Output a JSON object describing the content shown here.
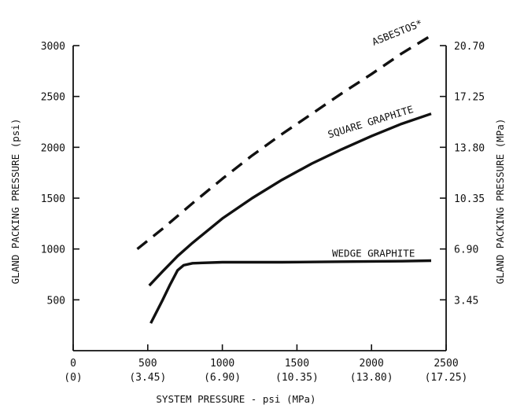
{
  "chart_data": {
    "type": "line",
    "xlabel": "SYSTEM PRESSURE - psi (MPa)",
    "ylabel_left": "GLAND PACKING PRESSURE (psi)",
    "ylabel_right": "GLAND PACKING PRESSURE (MPa)",
    "xlim": [
      0,
      2500
    ],
    "ylim": [
      0,
      3000
    ],
    "grid": false,
    "x_ticks": [
      {
        "value": 0,
        "label": "0",
        "sublabel": "(0)"
      },
      {
        "value": 500,
        "label": "500",
        "sublabel": "(3.45)"
      },
      {
        "value": 1000,
        "label": "1000",
        "sublabel": "(6.90)"
      },
      {
        "value": 1500,
        "label": "1500",
        "sublabel": "(10.35)"
      },
      {
        "value": 2000,
        "label": "2000",
        "sublabel": "(13.80)"
      },
      {
        "value": 2500,
        "label": "2500",
        "sublabel": "(17.25)"
      }
    ],
    "y_ticks_left": [
      {
        "value": 500,
        "label": "500"
      },
      {
        "value": 1000,
        "label": "1000"
      },
      {
        "value": 1500,
        "label": "1500"
      },
      {
        "value": 2000,
        "label": "2000"
      },
      {
        "value": 2500,
        "label": "2500"
      },
      {
        "value": 3000,
        "label": "3000"
      }
    ],
    "y_ticks_right": [
      {
        "value": 500,
        "label": "3.45"
      },
      {
        "value": 1000,
        "label": "6.90"
      },
      {
        "value": 1500,
        "label": "10.35"
      },
      {
        "value": 2000,
        "label": "13.80"
      },
      {
        "value": 2500,
        "label": "17.25"
      },
      {
        "value": 3000,
        "label": "20.70"
      }
    ],
    "series": [
      {
        "name": "ASBESTOS*",
        "style": "dashed",
        "x": [
          430,
          600,
          800,
          1000,
          1200,
          1400,
          1600,
          1800,
          2000,
          2200,
          2400
        ],
        "y": [
          1000,
          1200,
          1450,
          1690,
          1920,
          2130,
          2330,
          2530,
          2720,
          2920,
          3100
        ]
      },
      {
        "name": "SQUARE GRAPHITE",
        "style": "solid",
        "x": [
          510,
          600,
          700,
          800,
          1000,
          1200,
          1400,
          1600,
          1800,
          2000,
          2200,
          2400
        ],
        "y": [
          640,
          780,
          930,
          1060,
          1300,
          1500,
          1680,
          1840,
          1980,
          2110,
          2230,
          2330
        ]
      },
      {
        "name": "WEDGE GRAPHITE",
        "style": "solid",
        "x": [
          520,
          600,
          650,
          700,
          740,
          800,
          1000,
          1400,
          1800,
          2200,
          2400
        ],
        "y": [
          270,
          500,
          650,
          790,
          840,
          860,
          870,
          870,
          875,
          880,
          885
        ]
      }
    ]
  }
}
